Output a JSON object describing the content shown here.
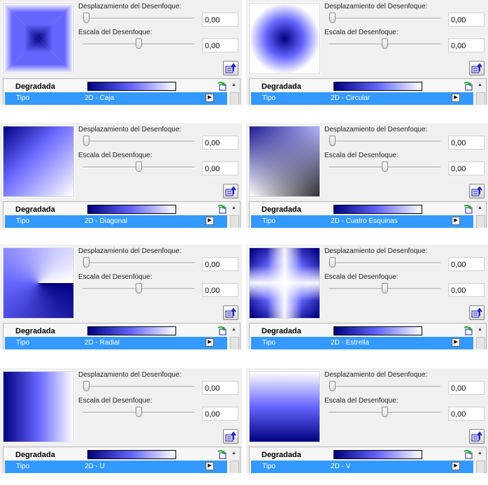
{
  "colors": {
    "dark": "#000080",
    "mid": "#6666ff",
    "light": "#ffffff",
    "selection": "#3399ff",
    "panel_bg": "#f0f0f0"
  },
  "panels": [
    {
      "offset_label": "Desplazamiento del Desenfoque:",
      "offset_value": "0,00",
      "offset_slider": 0,
      "scale_label": "Escala del Desenfoque:",
      "scale_value": "0,00",
      "scale_slider": 0.5,
      "header": "Degradada",
      "row_key": "Tipo",
      "row_value": "2D - Caja",
      "gradient": "box"
    },
    {
      "offset_label": "Desplazamiento del Desenfoque:",
      "offset_value": "0,00",
      "offset_slider": 0,
      "scale_label": "Escala del Desenfoque:",
      "scale_value": "0,00",
      "scale_slider": 0.5,
      "header": "Degradada",
      "row_key": "Tipo",
      "row_value": "2D - Circular",
      "gradient": "circular"
    },
    {
      "offset_label": "Desplazamiento del Desenfoque:",
      "offset_value": "0,00",
      "offset_slider": 0,
      "scale_label": "Escala del Desenfoque:",
      "scale_value": "0,00",
      "scale_slider": 0.5,
      "header": "Degradada",
      "row_key": "Tipo",
      "row_value": "2D - Diagonal",
      "gradient": "diagonal"
    },
    {
      "offset_label": "Desplazamiento del Desenfoque:",
      "offset_value": "0,00",
      "offset_slider": 0,
      "scale_label": "Escala del Desenfoque:",
      "scale_value": "0,00",
      "scale_slider": 0.5,
      "header": "Degradada",
      "row_key": "Tipo",
      "row_value": "2D - Cuatro Esquinas",
      "gradient": "four-corners"
    },
    {
      "offset_label": "Desplazamiento del Desenfoque:",
      "offset_value": "0,00",
      "offset_slider": 0,
      "scale_label": "Escala del Desenfoque:",
      "scale_value": "0,00",
      "scale_slider": 0.5,
      "header": "Degradada",
      "row_key": "Tipo",
      "row_value": "2D - Radial",
      "gradient": "radial"
    },
    {
      "offset_label": "Desplazamiento del Desenfoque:",
      "offset_value": "0,00",
      "offset_slider": 0,
      "scale_label": "Escala del Desenfoque:",
      "scale_value": "0,00",
      "scale_slider": 0.5,
      "header": "Degradada",
      "row_key": "Tipo",
      "row_value": "2D - Estrella",
      "gradient": "star"
    },
    {
      "offset_label": "Desplazamiento del Desenfoque:",
      "offset_value": "0,00",
      "offset_slider": 0,
      "scale_label": "Escala del Desenfoque:",
      "scale_value": "0,00",
      "scale_slider": 0.5,
      "header": "Degradada",
      "row_key": "Tipo",
      "row_value": "2D - U",
      "gradient": "u"
    },
    {
      "offset_label": "Desplazamiento del Desenfoque:",
      "offset_value": "0,00",
      "offset_slider": 0,
      "scale_label": "Escala del Desenfoque:",
      "scale_value": "0,00",
      "scale_slider": 0.5,
      "header": "Degradada",
      "row_key": "Tipo",
      "row_value": "2D - V",
      "gradient": "v"
    }
  ]
}
